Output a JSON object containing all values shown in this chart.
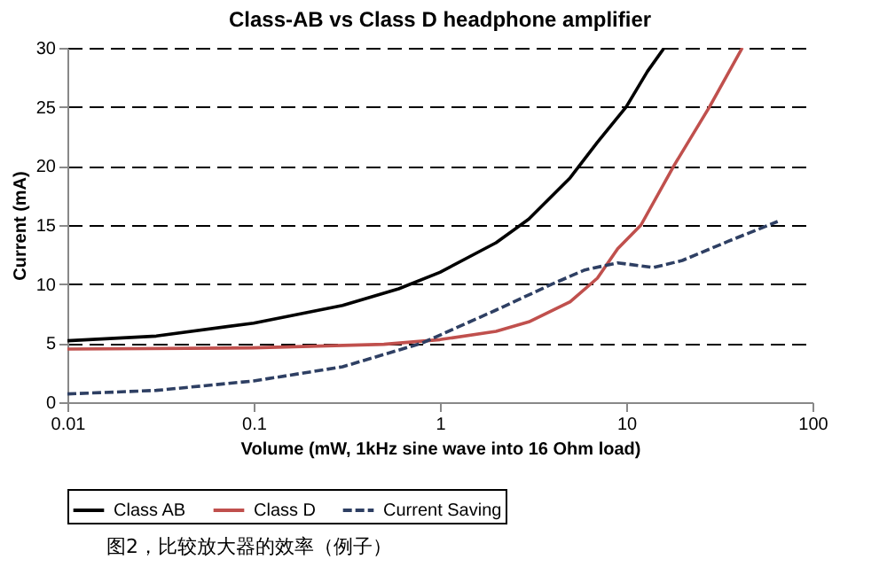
{
  "chart_data": {
    "type": "line",
    "title": "Class-AB vs Class D headphone amplifier",
    "xlabel": "Volume (mW, 1kHz sine wave into 16 Ohm load)",
    "ylabel": "Current (mA)",
    "log": "x",
    "xlim": [
      0.01,
      100
    ],
    "xticks": [
      0.01,
      0.1,
      1,
      10,
      100
    ],
    "ylim": [
      0,
      30
    ],
    "yticks": [
      0,
      5,
      10,
      15,
      20,
      25,
      30
    ],
    "grid": "y",
    "legend": "bottom",
    "annotations": [
      "图2，比较放大器的效率（例子）"
    ],
    "series": [
      {
        "name": "Class AB",
        "color": "#000000",
        "line_style": "solid",
        "x": [
          0.01,
          0.03,
          0.1,
          0.3,
          0.6,
          1,
          2,
          3,
          5,
          7,
          10,
          13,
          16
        ],
        "values": [
          5.2,
          5.6,
          6.7,
          8.2,
          9.6,
          11,
          13.5,
          15.5,
          19,
          22,
          25,
          28,
          30
        ]
      },
      {
        "name": "Class D",
        "color": "#c0504d",
        "line_style": "solid",
        "x": [
          0.01,
          0.1,
          0.5,
          1,
          2,
          3,
          5,
          7,
          9,
          12,
          18,
          28,
          42
        ],
        "values": [
          4.5,
          4.6,
          4.9,
          5.3,
          6,
          6.8,
          8.5,
          10.5,
          13,
          15,
          20,
          25,
          30
        ]
      },
      {
        "name": "Current Saving",
        "color": "#2e3f63",
        "line_style": "dashed",
        "x": [
          0.01,
          0.03,
          0.1,
          0.3,
          0.8,
          2,
          4,
          6,
          9,
          14,
          20,
          35,
          65
        ],
        "values": [
          0.7,
          1.0,
          1.8,
          3.0,
          5.0,
          7.8,
          10,
          11.2,
          11.8,
          11.4,
          12,
          13.6,
          15.3
        ]
      }
    ]
  }
}
